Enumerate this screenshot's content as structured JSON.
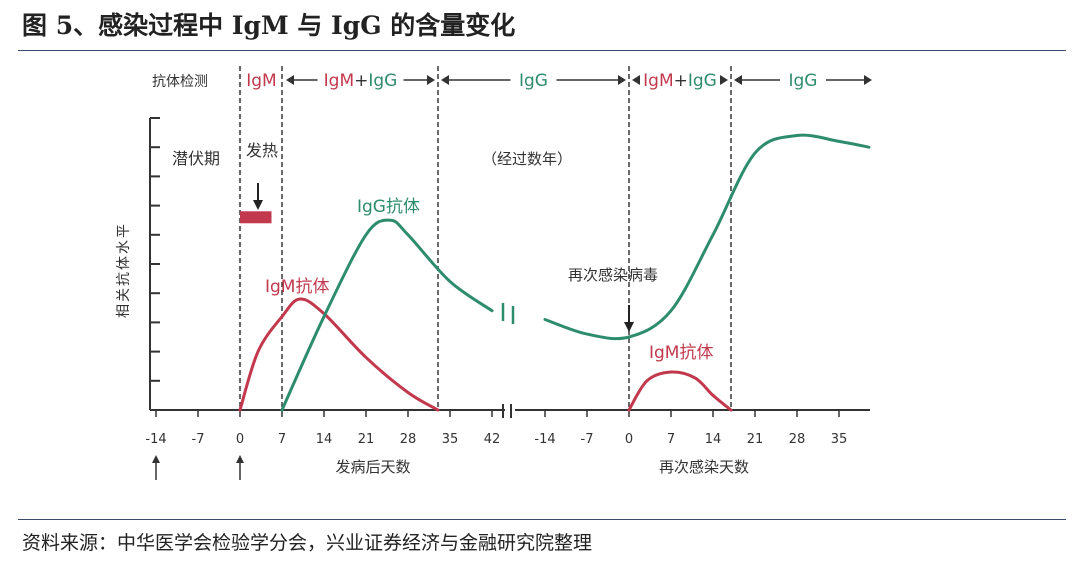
{
  "figure_title": "图 5、感染过程中 IgM 与 IgG 的含量变化",
  "source": "资料来源：中华医学会检验学分会，兴业证券经济与金融研究院整理",
  "colors": {
    "igm": "#c2384c",
    "igg": "#2e8c6e",
    "axis": "#333333"
  },
  "chart_data": {
    "type": "line",
    "title": "",
    "ylabel": "相关抗体水平",
    "ylim": [
      0,
      10
    ],
    "detection_header": {
      "label": "抗体检测",
      "segments": [
        {
          "text": "IgM",
          "parts": [
            {
              "t": "IgM",
              "c": "igm"
            }
          ]
        },
        {
          "text": "IgM+IgG",
          "parts": [
            {
              "t": "IgM",
              "c": "igm"
            },
            {
              "t": "+",
              "c": "axis"
            },
            {
              "t": "IgG",
              "c": "igg"
            }
          ]
        },
        {
          "text": "IgG",
          "parts": [
            {
              "t": "IgG",
              "c": "igg"
            }
          ]
        },
        {
          "text": "IgM+IgG",
          "parts": [
            {
              "t": "IgM",
              "c": "igm"
            },
            {
              "t": "+",
              "c": "axis"
            },
            {
              "t": "IgG",
              "c": "igg"
            }
          ]
        },
        {
          "text": "IgG",
          "parts": [
            {
              "t": "IgG",
              "c": "igg"
            }
          ]
        }
      ]
    },
    "annotations": {
      "incubation": "潜伏期",
      "fever": "发热",
      "years": "（经过数年）",
      "reinfection": "再次感染病毒",
      "igg_label": "IgG抗体",
      "igm_label_1": "IgM抗体",
      "igm_label_2": "IgM抗体"
    },
    "xaxis_primary": {
      "label": "发病后天数",
      "ticks": [
        "-14",
        "-7",
        "0",
        "7",
        "14",
        "21",
        "28",
        "35",
        "42"
      ]
    },
    "xaxis_secondary": {
      "label": "再次感染天数",
      "ticks": [
        "-14",
        "-7",
        "0",
        "7",
        "14",
        "21",
        "28",
        "35"
      ]
    },
    "series": [
      {
        "name": "IgM抗体",
        "phase": "primary",
        "color": "igm",
        "x": [
          0,
          3,
          7,
          10,
          14,
          21,
          28,
          33
        ],
        "y": [
          0,
          2.0,
          3.2,
          3.8,
          3.3,
          1.8,
          0.6,
          0
        ]
      },
      {
        "name": "IgG抗体",
        "phase": "primary",
        "color": "igg",
        "x": [
          7,
          14,
          21,
          25,
          28,
          35,
          42
        ],
        "y": [
          0,
          3.2,
          6.0,
          6.5,
          6.0,
          4.4,
          3.4
        ]
      },
      {
        "name": "IgG抗体",
        "phase": "secondary",
        "color": "igg",
        "x": [
          -14,
          -7,
          0,
          7,
          14,
          21,
          28,
          35,
          40
        ],
        "y": [
          3.1,
          2.6,
          2.5,
          3.4,
          6.0,
          8.8,
          9.4,
          9.2,
          9.0
        ]
      },
      {
        "name": "IgM抗体",
        "phase": "secondary",
        "color": "igm",
        "x": [
          0,
          3,
          7,
          11,
          14,
          17
        ],
        "y": [
          0,
          1.0,
          1.3,
          1.1,
          0.5,
          0
        ]
      }
    ],
    "fever_bar": {
      "x_start": 0,
      "x_end": 3.5,
      "y": 6.6
    }
  }
}
